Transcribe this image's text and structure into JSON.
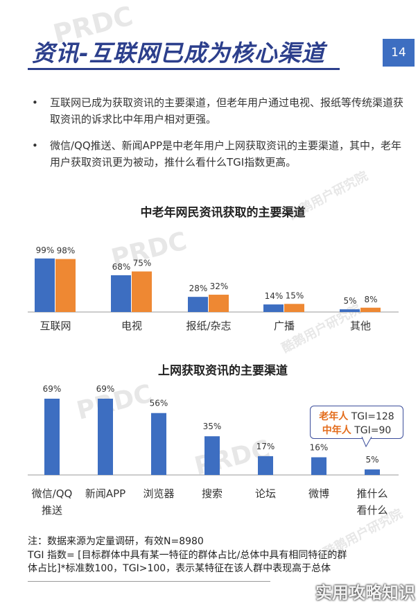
{
  "header": {
    "title": "资讯-互联网已成为核心渠道",
    "page_number": "14"
  },
  "bullets": [
    {
      "symbol": "•",
      "text": "互联网已成为获取资讯的主要渠道，但老年用户通过电视、报纸等传统渠道获取资讯的诉求比中年用户相对更强。"
    },
    {
      "symbol": "•",
      "text": "微信/QQ推送、新闻APP是中老年用户上网获取资讯的主要渠道，其中，老年用户获取资讯更为被动，推什么看什么TGI指数更高。"
    }
  ],
  "chart_data": [
    {
      "type": "bar",
      "title": "中老年网民资讯获取的主要渠道",
      "categories": [
        "互联网",
        "电视",
        "报纸/杂志",
        "广播",
        "其他"
      ],
      "series": [
        {
          "values": [
            99,
            68,
            28,
            14,
            5
          ],
          "labels": [
            "99%",
            "68%",
            "28%",
            "14%",
            "5%"
          ],
          "color": "#3d6ec1"
        },
        {
          "values": [
            98,
            75,
            32,
            15,
            8
          ],
          "labels": [
            "98%",
            "75%",
            "32%",
            "15%",
            "8%"
          ],
          "color": "#ee8833"
        }
      ],
      "ylim": [
        0,
        100
      ]
    },
    {
      "type": "bar",
      "title": "上网获取资讯的主要渠道",
      "categories": [
        "微信/QQ\n推送",
        "新闻APP",
        "浏览器",
        "搜索",
        "论坛",
        "微博",
        "推什么\n看什么"
      ],
      "series": [
        {
          "values": [
            69,
            69,
            56,
            35,
            17,
            16,
            5
          ],
          "labels": [
            "69%",
            "69%",
            "56%",
            "35%",
            "17%",
            "16%",
            "5%"
          ],
          "color": "#3d6ec1"
        }
      ],
      "ylim": [
        0,
        100
      ]
    }
  ],
  "tgi_callout": {
    "line1_key": "老年人",
    "line1_val": "TGI=128",
    "line2_key": "中年人",
    "line2_val": "TGI=90"
  },
  "notes": {
    "line1": "注：数据来源为定量调研，有效N=8980",
    "line2": "TGI 指数= [目标群体中具有某一特征的群体占比/总体中具有相同特征的群",
    "line3": "体占比]*标准数100，TGI>100，表示某特征在该人群中表现高于总体"
  },
  "watermarks": {
    "brand": "实用攻略知识",
    "cn": "酷鹅用户研究院",
    "latin": "PRDC"
  },
  "colors": {
    "primary": "#3d6ec1",
    "accent": "#ee8833",
    "title": "#2c3f8c"
  }
}
